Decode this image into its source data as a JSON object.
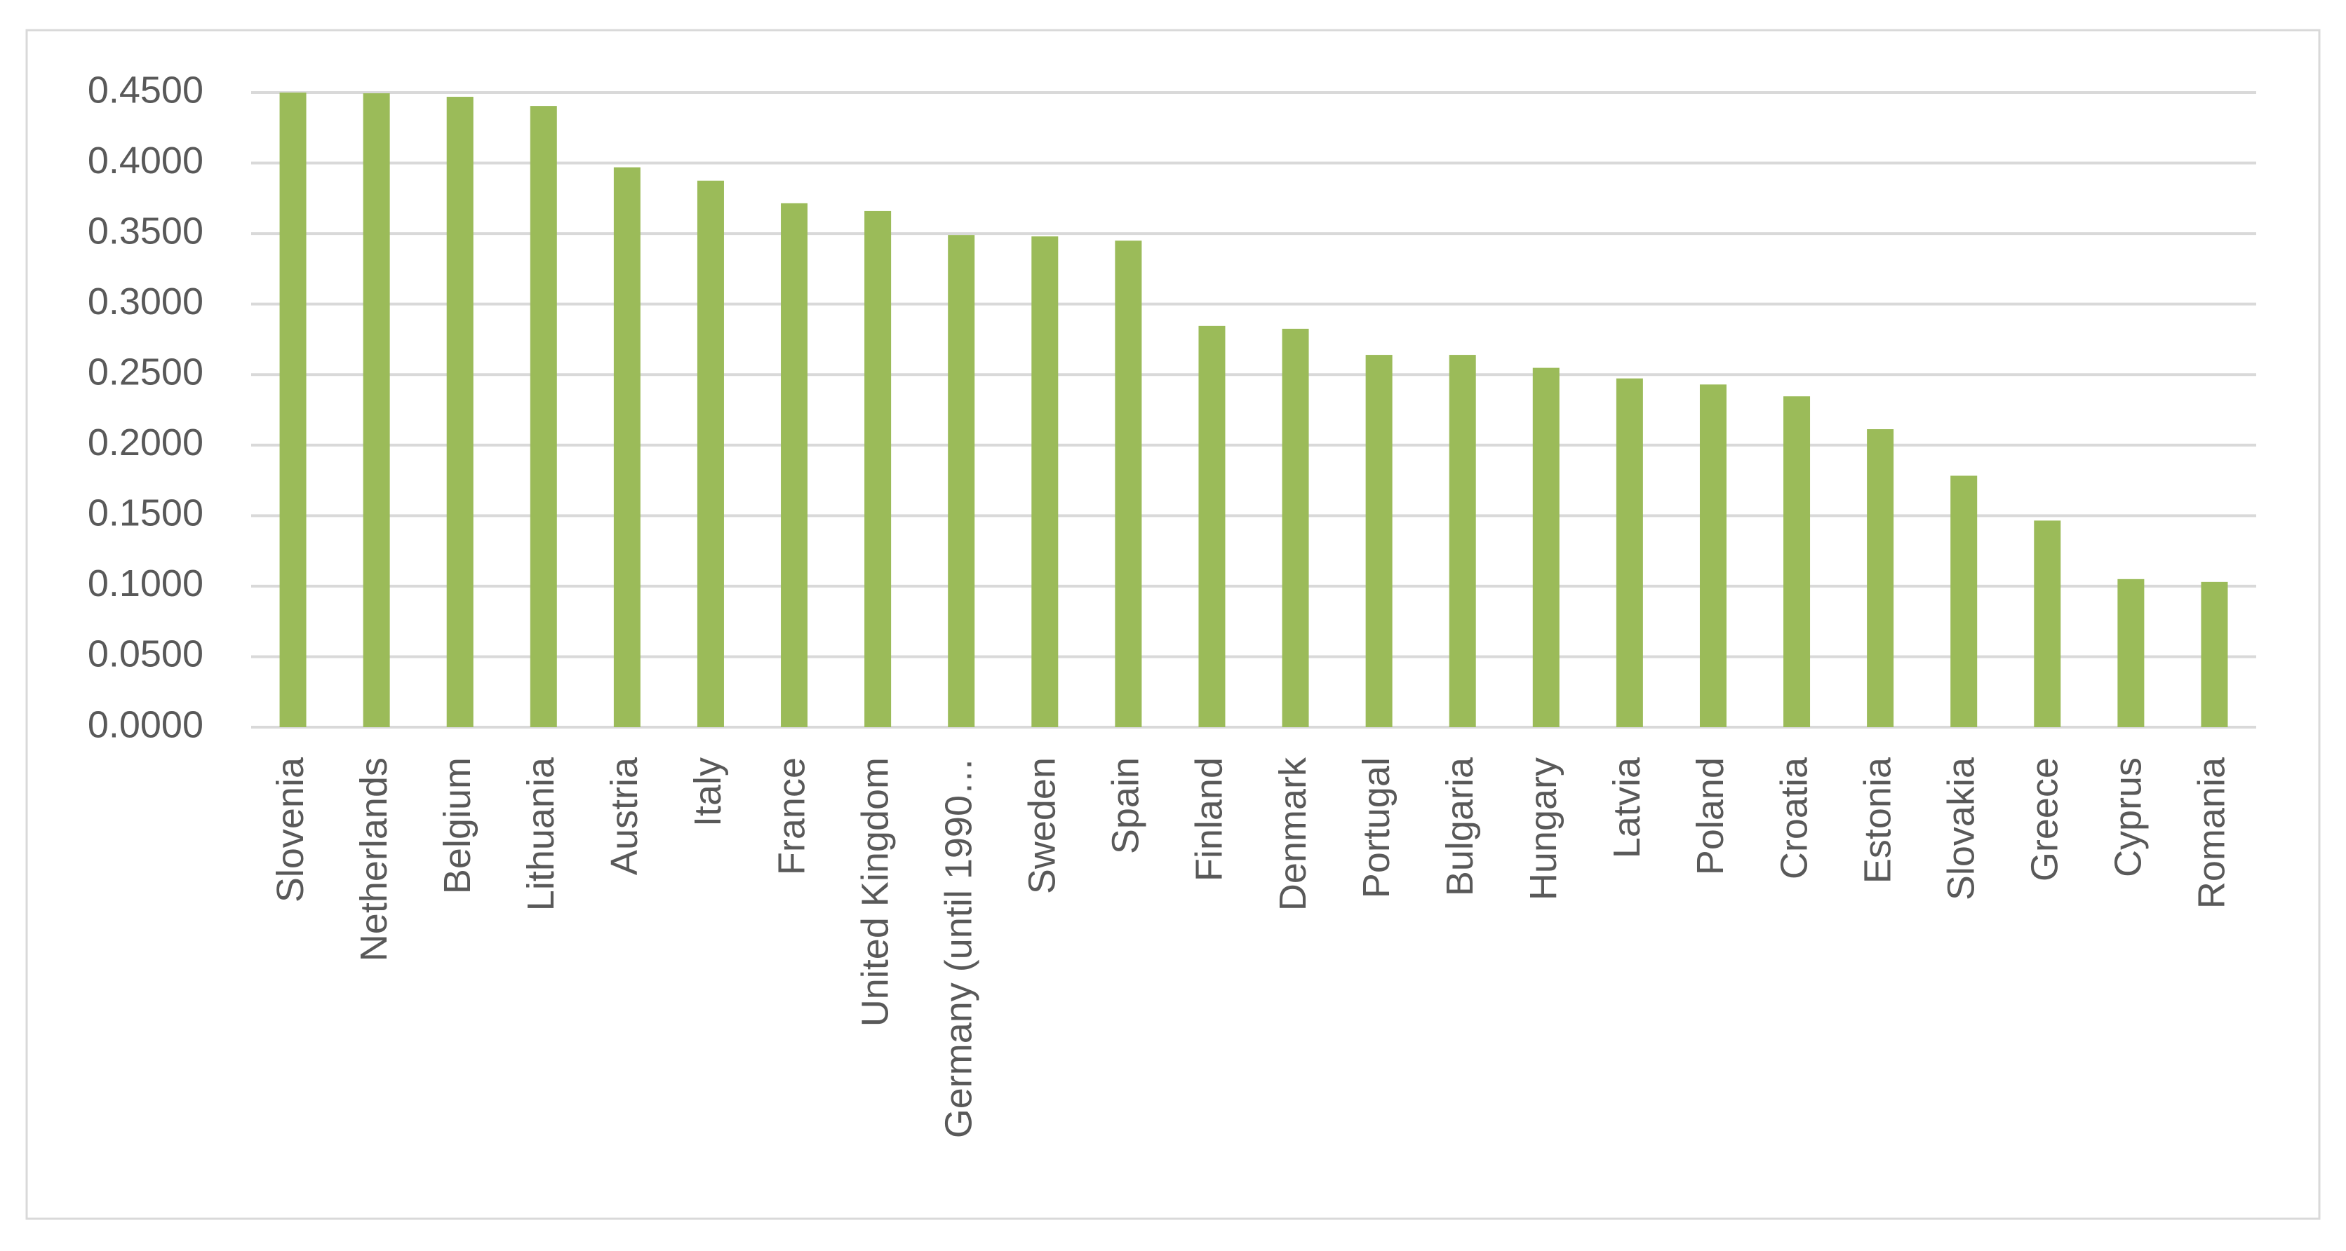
{
  "chart_data": {
    "type": "bar",
    "categories": [
      "Slovenia",
      "Netherlands",
      "Belgium",
      "Lithuania",
      "Austria",
      "Italy",
      "France",
      "United Kingdom",
      "Germany (until 1990…",
      "Sweden",
      "Spain",
      "Finland",
      "Denmark",
      "Portugal",
      "Bulgaria",
      "Hungary",
      "Latvia",
      "Poland",
      "Croatia",
      "Estonia",
      "Slovakia",
      "Greece",
      "Cyprus",
      "Romania"
    ],
    "values": [
      0.45,
      0.4495,
      0.447,
      0.4405,
      0.397,
      0.3875,
      0.3715,
      0.366,
      0.349,
      0.348,
      0.345,
      0.2845,
      0.2825,
      0.264,
      0.264,
      0.2548,
      0.2473,
      0.243,
      0.2346,
      0.2113,
      0.1783,
      0.1465,
      0.105,
      0.103
    ],
    "color": "#9bbb59",
    "ylim": [
      0,
      0.45
    ],
    "yticks": [
      {
        "value": 0,
        "label": "0.0000"
      },
      {
        "value": 0.05,
        "label": "0.0500"
      },
      {
        "value": 0.1,
        "label": "0.1000"
      },
      {
        "value": 0.15,
        "label": "0.1500"
      },
      {
        "value": 0.2,
        "label": "0.2000"
      },
      {
        "value": 0.25,
        "label": "0.2500"
      },
      {
        "value": 0.3,
        "label": "0.3000"
      },
      {
        "value": 0.35,
        "label": "0.3500"
      },
      {
        "value": 0.4,
        "label": "0.4000"
      },
      {
        "value": 0.45,
        "label": "0.4500"
      }
    ],
    "grid": true
  }
}
